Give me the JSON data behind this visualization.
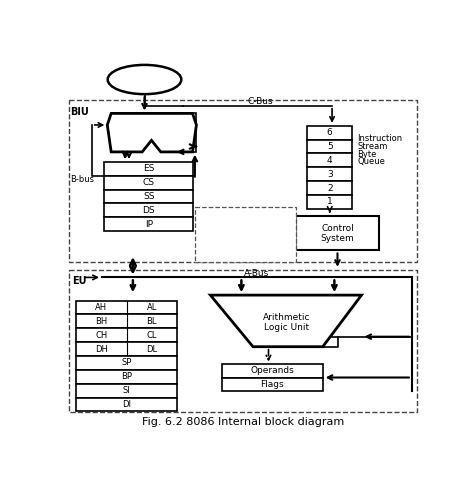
{
  "title": "Fig. 6.2 8086 Internal block diagram",
  "bg_color": "#ffffff",
  "fig_width": 4.74,
  "fig_height": 4.83,
  "dpi": 100,
  "sr_labels": [
    "ES",
    "CS",
    "SS",
    "DS",
    "IP"
  ],
  "iq_labels": [
    "6",
    "5",
    "4",
    "3",
    "2",
    "1"
  ],
  "gp_rows": [
    [
      "AH",
      "AL"
    ],
    [
      "BH",
      "BL"
    ],
    [
      "CH",
      "CL"
    ],
    [
      "DH",
      "DL"
    ]
  ],
  "sp_rows": [
    "SP",
    "BP",
    "SI",
    "DI"
  ],
  "isbq_text": [
    "Instruction",
    "Stream",
    "Byte",
    "Queue"
  ]
}
